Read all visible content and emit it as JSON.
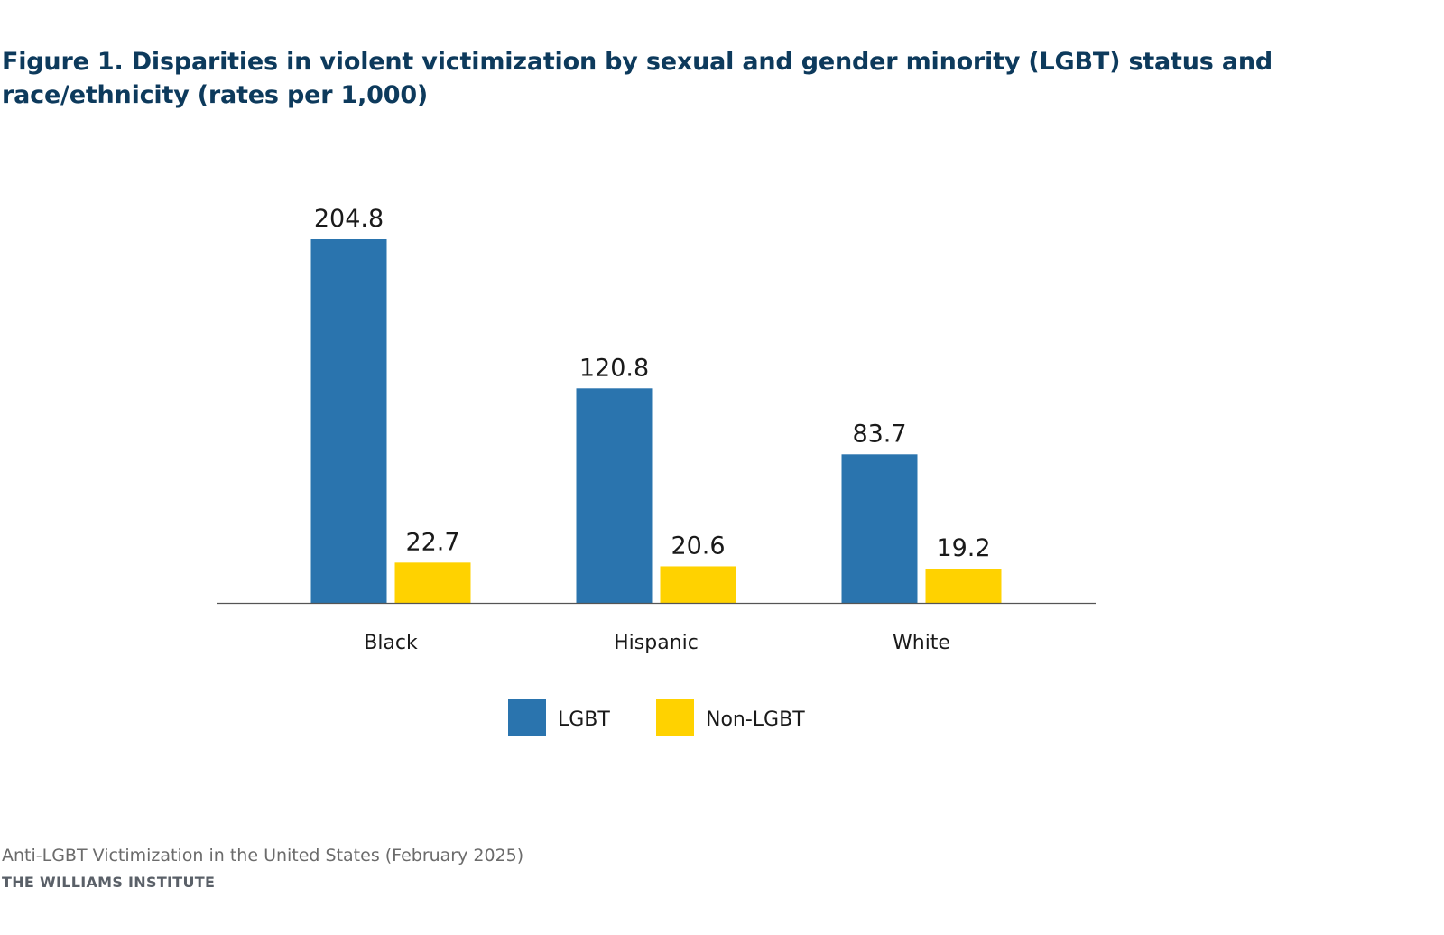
{
  "title": "Figure 1. Disparities in violent victimization by sexual and gender minority (LGBT) status and race/ethnicity (rates per 1,000)",
  "colors": {
    "lgbt": "#2a74ae",
    "non_lgbt": "#ffd200",
    "title": "#0d3a5c",
    "axis": "#555555"
  },
  "chart_data": {
    "type": "bar",
    "title": "Figure 1. Disparities in violent victimization by sexual and gender minority (LGBT) status and race/ethnicity (rates per 1,000)",
    "categories": [
      "Black",
      "Hispanic",
      "White"
    ],
    "series": [
      {
        "name": "LGBT",
        "values": [
          204.8,
          120.8,
          83.7
        ]
      },
      {
        "name": "Non-LGBT",
        "values": [
          22.7,
          20.6,
          19.2
        ]
      }
    ],
    "ylim": [
      0,
      204.8
    ],
    "grid": false,
    "legend": "bottom-center",
    "data_labels": true
  },
  "footer": {
    "source": "Anti-LGBT Victimization in the United States (February 2025)",
    "org": "THE WILLIAMS INSTITUTE"
  }
}
